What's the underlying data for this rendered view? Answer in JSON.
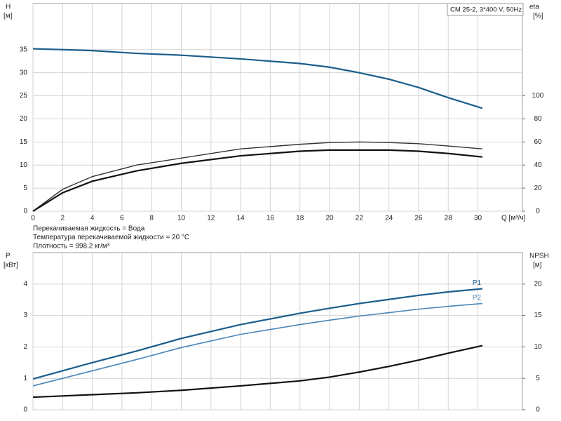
{
  "chart_data": [
    {
      "type": "line",
      "legend_text": "CM 25-2, 3*400 V, 50Hz",
      "x_label": "Q [м³/ч]",
      "y_label": "H",
      "y_unit": "[м]",
      "y2_label": "eta",
      "y2_unit": "[%]",
      "notes": [
        "Перекачиваемая жидкость = Вода",
        "Температура перекачиваемой жидкости = 20 °C",
        "Плотность = 998.2 кг/м³"
      ],
      "x": [
        0,
        2,
        4,
        7,
        10,
        14,
        18,
        20,
        22,
        24,
        26,
        28,
        30.3
      ],
      "xlim": [
        0,
        33
      ],
      "xticks": [
        0,
        2,
        4,
        6,
        8,
        10,
        12,
        14,
        16,
        18,
        20,
        22,
        24,
        26,
        28,
        30
      ],
      "ylim": [
        0,
        45
      ],
      "yticks": [
        0,
        5,
        10,
        15,
        20,
        25,
        30,
        35
      ],
      "y2lim": [
        0,
        180
      ],
      "y2ticks": [
        0,
        20,
        40,
        60,
        80,
        100
      ],
      "grid": true,
      "series": [
        {
          "color": "#1b5e8c",
          "width": 2.2,
          "values": [
            35.2,
            35.0,
            34.8,
            34.2,
            33.8,
            33.0,
            32.0,
            31.2,
            30.0,
            28.6,
            26.8,
            24.6,
            22.3
          ]
        },
        {
          "color": "#333333",
          "width": 1.4,
          "axis": "y2",
          "values": [
            0,
            19,
            30,
            40,
            46,
            54,
            58,
            59.5,
            60,
            59.5,
            58.5,
            56.5,
            54
          ]
        },
        {
          "color": "#111111",
          "width": 2.2,
          "axis": "y2",
          "values": [
            0,
            16,
            26,
            35,
            41.5,
            48,
            52,
            53,
            53,
            53,
            52,
            50,
            47
          ]
        }
      ]
    },
    {
      "type": "line",
      "y_label": "P",
      "y_unit": "[кВт]",
      "y2_label": "NPSH",
      "y2_unit": "[м]",
      "x": [
        0,
        2,
        4,
        7,
        10,
        14,
        18,
        20,
        22,
        24,
        26,
        28,
        30.3
      ],
      "xlim": [
        0,
        33
      ],
      "xticks": [
        0,
        2,
        4,
        6,
        8,
        10,
        12,
        14,
        16,
        18,
        20,
        22,
        24,
        26,
        28,
        30
      ],
      "ylim": [
        0,
        5
      ],
      "yticks": [
        0,
        1,
        2,
        3,
        4
      ],
      "y2lim": [
        0,
        25
      ],
      "y2ticks": [
        0,
        5,
        10,
        15,
        20
      ],
      "grid": true,
      "series": [
        {
          "name": "P1",
          "color": "#1b5e8c",
          "width": 2.2,
          "values": [
            0.98,
            1.24,
            1.5,
            1.87,
            2.27,
            2.71,
            3.07,
            3.23,
            3.38,
            3.51,
            3.64,
            3.75,
            3.85
          ]
        },
        {
          "name": "P2",
          "color": "#4a86b8",
          "width": 1.6,
          "values": [
            0.76,
            1.0,
            1.24,
            1.6,
            1.98,
            2.4,
            2.71,
            2.85,
            2.98,
            3.09,
            3.2,
            3.29,
            3.38
          ]
        },
        {
          "color": "#111111",
          "width": 2.2,
          "axis": "y2",
          "values": [
            2.0,
            2.2,
            2.4,
            2.7,
            3.1,
            3.8,
            4.6,
            5.2,
            6.0,
            6.9,
            7.9,
            9.0,
            10.2
          ]
        }
      ]
    }
  ]
}
